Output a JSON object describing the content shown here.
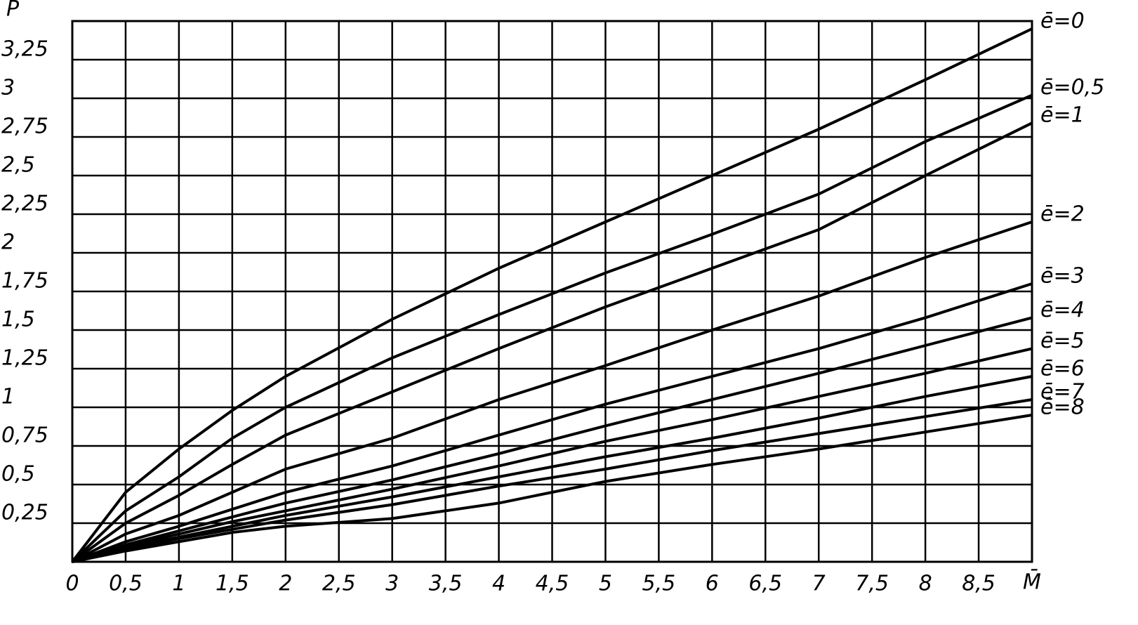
{
  "chart_data": {
    "type": "line",
    "x_label": "M̄",
    "y_label": "P̄",
    "xlim": [
      0,
      9
    ],
    "ylim": [
      0,
      3.5
    ],
    "xticks": [
      0,
      {
        "value": 0.5,
        "label": "0,5"
      },
      1,
      {
        "value": 1.5,
        "label": "1,5"
      },
      2,
      {
        "value": 2.5,
        "label": "2,5"
      },
      3,
      {
        "value": 3.5,
        "label": "3,5"
      },
      4,
      {
        "value": 4.5,
        "label": "4,5"
      },
      5,
      {
        "value": 5.5,
        "label": "5,5"
      },
      6,
      {
        "value": 6.5,
        "label": "6,5"
      },
      7,
      {
        "value": 7.5,
        "label": "7,5"
      },
      8,
      {
        "value": 8.5,
        "label": "8,5"
      }
    ],
    "yticks": [
      {
        "value": 0.25,
        "label": "0,25"
      },
      {
        "value": 0.5,
        "label": "0,5"
      },
      {
        "value": 0.75,
        "label": "0,75"
      },
      1,
      {
        "value": 1.25,
        "label": "1,25"
      },
      {
        "value": 1.5,
        "label": "1,5"
      },
      {
        "value": 1.75,
        "label": "1,75"
      },
      2,
      {
        "value": 2.25,
        "label": "2,25"
      },
      {
        "value": 2.5,
        "label": "2,5"
      },
      {
        "value": 2.75,
        "label": "2,75"
      },
      3,
      {
        "value": 3.25,
        "label": "3,25"
      }
    ],
    "grid": true,
    "x": [
      0,
      0.5,
      1,
      1.5,
      2,
      3,
      4,
      5,
      6,
      7,
      8,
      9
    ],
    "series": [
      {
        "name": "ē=0",
        "color": "#000",
        "values": [
          0,
          0.45,
          0.73,
          0.98,
          1.2,
          1.57,
          1.9,
          2.2,
          2.5,
          2.8,
          3.12,
          3.45
        ]
      },
      {
        "name": "ē=0,5",
        "color": "#000",
        "values": [
          0,
          0.33,
          0.55,
          0.8,
          1.0,
          1.32,
          1.6,
          1.87,
          2.12,
          2.38,
          2.72,
          3.02
        ]
      },
      {
        "name": "ē=1",
        "color": "#000",
        "values": [
          0,
          0.25,
          0.43,
          0.63,
          0.82,
          1.1,
          1.38,
          1.65,
          1.9,
          2.15,
          2.5,
          2.84
        ]
      },
      {
        "name": "ē=2",
        "color": "#000",
        "values": [
          0,
          0.18,
          0.3,
          0.45,
          0.6,
          0.8,
          1.05,
          1.27,
          1.5,
          1.72,
          1.97,
          2.2
        ]
      },
      {
        "name": "ē=3",
        "color": "#000",
        "values": [
          0,
          0.13,
          0.23,
          0.34,
          0.45,
          0.62,
          0.82,
          1.02,
          1.2,
          1.38,
          1.58,
          1.8
        ]
      },
      {
        "name": "ē=4",
        "color": "#000",
        "values": [
          0,
          0.11,
          0.2,
          0.29,
          0.38,
          0.53,
          0.7,
          0.88,
          1.05,
          1.22,
          1.4,
          1.58
        ]
      },
      {
        "name": "ē=5",
        "color": "#000",
        "values": [
          0,
          0.1,
          0.18,
          0.26,
          0.33,
          0.47,
          0.62,
          0.78,
          0.92,
          1.07,
          1.22,
          1.38
        ]
      },
      {
        "name": "ē=6",
        "color": "#000",
        "values": [
          0,
          0.09,
          0.16,
          0.23,
          0.3,
          0.42,
          0.55,
          0.68,
          0.8,
          0.93,
          1.07,
          1.2
        ]
      },
      {
        "name": "ē=7",
        "color": "#000",
        "values": [
          0,
          0.08,
          0.15,
          0.21,
          0.27,
          0.37,
          0.49,
          0.6,
          0.72,
          0.83,
          0.94,
          1.05
        ]
      },
      {
        "name": "ē=8",
        "color": "#000",
        "values": [
          0,
          0.07,
          0.13,
          0.19,
          0.23,
          0.28,
          0.38,
          0.52,
          0.63,
          0.73,
          0.84,
          0.95
        ]
      }
    ]
  }
}
